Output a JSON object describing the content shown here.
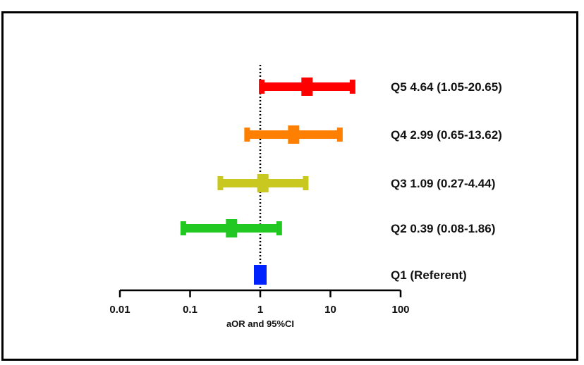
{
  "chart_data": {
    "type": "forest",
    "xlabel": "aOR and 95%CI",
    "x_scale": "log",
    "xlim": [
      0.01,
      100
    ],
    "x_ticks": [
      0.01,
      0.1,
      1,
      10,
      100
    ],
    "x_tick_labels": [
      "0.01",
      "0.1",
      "1",
      "10",
      "100"
    ],
    "reference_line": 1,
    "grid": false,
    "rows": [
      {
        "label": "Q5 4.64 (1.05-20.65)",
        "estimate": 4.64,
        "lower": 1.05,
        "upper": 20.65,
        "color": "#ff0000"
      },
      {
        "label": "Q4 2.99 (0.65-13.62)",
        "estimate": 2.99,
        "lower": 0.65,
        "upper": 13.62,
        "color": "#ff8000"
      },
      {
        "label": "Q3 1.09 (0.27-4.44)",
        "estimate": 1.09,
        "lower": 0.27,
        "upper": 4.44,
        "color": "#c8c820"
      },
      {
        "label": "Q2 0.39 (0.08-1.86)",
        "estimate": 0.39,
        "lower": 0.08,
        "upper": 1.86,
        "color": "#22c822"
      },
      {
        "label": "Q1 (Referent)",
        "estimate": 1,
        "lower": 1,
        "upper": 1,
        "color": "#0022ff"
      }
    ]
  }
}
